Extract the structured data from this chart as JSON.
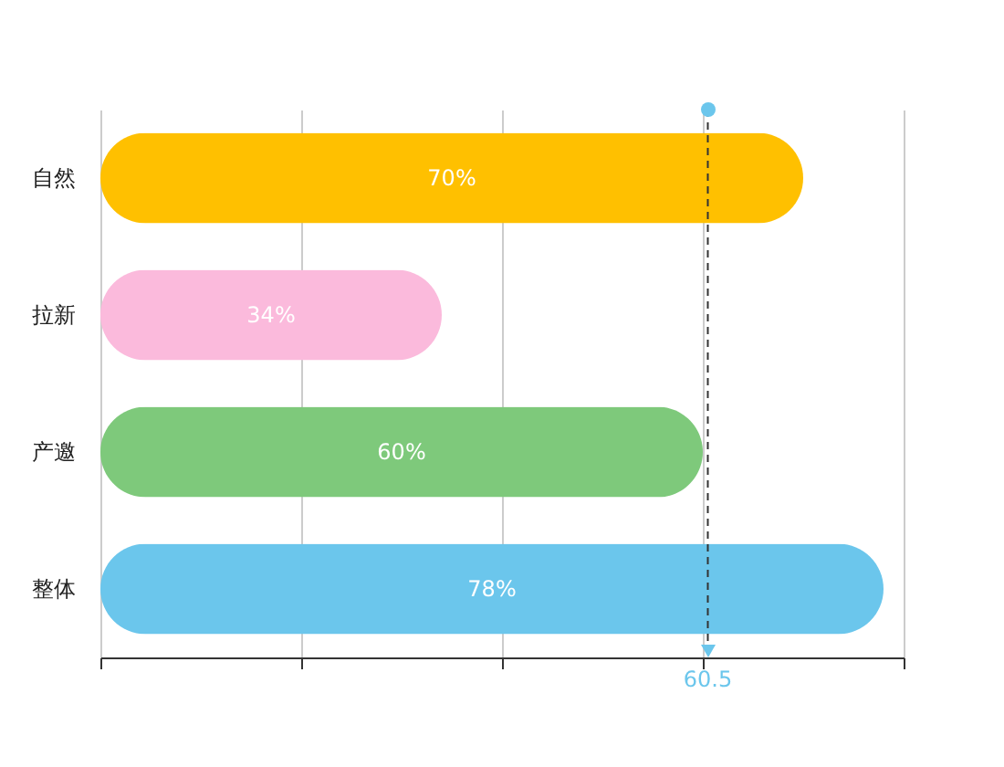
{
  "chart_data": {
    "type": "bar",
    "orientation": "horizontal",
    "categories": [
      "自然",
      "拉新",
      "产邀",
      "整体"
    ],
    "values": [
      70,
      34,
      60,
      78
    ],
    "colors": [
      "#ffc000",
      "#fbbadc",
      "#7ec97b",
      "#6bc6ec"
    ],
    "value_labels": [
      "70%",
      "34%",
      "60%",
      "78%"
    ],
    "xlim": [
      0,
      80
    ],
    "xticks": [
      {
        "value": 0,
        "label": null
      },
      {
        "value": 20,
        "label": null
      },
      {
        "value": 40,
        "label": null
      },
      {
        "value": 60,
        "label": null
      },
      {
        "value": 80,
        "label": null
      }
    ],
    "tick_labels": "y",
    "grid": "x",
    "legend": false,
    "ref_lines": [
      {
        "axis": "x",
        "value": 60.5,
        "label": "60.5",
        "line_style": "dashed",
        "color": "#333333"
      }
    ]
  }
}
